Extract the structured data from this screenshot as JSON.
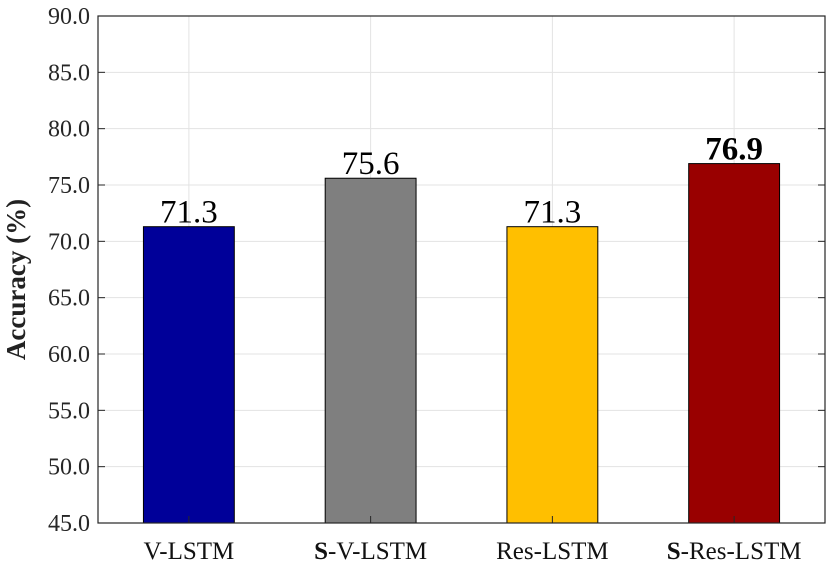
{
  "chart_data": {
    "type": "bar",
    "categories": [
      {
        "prefix": "",
        "label": "V-LSTM"
      },
      {
        "prefix": "S",
        "label": "-V-LSTM"
      },
      {
        "prefix": "",
        "label": "Res-LSTM"
      },
      {
        "prefix": "S",
        "label": "-Res-LSTM"
      }
    ],
    "values": [
      71.3,
      75.6,
      71.3,
      76.9
    ],
    "value_labels": [
      "71.3",
      "75.6",
      "71.3",
      "76.9"
    ],
    "highlight_index": 3,
    "colors": [
      "#000099",
      "#7f7f7f",
      "#ffbf00",
      "#990000"
    ],
    "title": "",
    "xlabel": "",
    "ylabel": "Accuracy (%)",
    "ylim": [
      45.0,
      90.0
    ],
    "yticks": [
      "45.0",
      "50.0",
      "55.0",
      "60.0",
      "65.0",
      "70.0",
      "75.0",
      "80.0",
      "85.0",
      "90.0"
    ],
    "grid": true
  }
}
